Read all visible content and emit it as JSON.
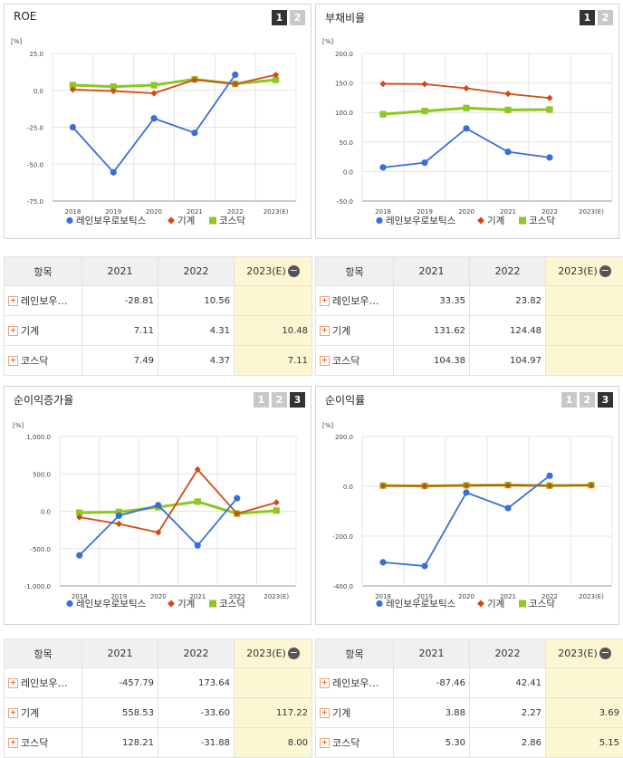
{
  "legend": [
    "레인보우로보틱스",
    "기계",
    "코스닥"
  ],
  "colors": {
    "series": [
      "#3a6fd8",
      "#d24a14",
      "#8dc71f"
    ]
  },
  "table_header": {
    "item": "항목",
    "years": [
      "2021",
      "2022",
      "2023(E)"
    ],
    "collapse_icon": "minus-circle-icon"
  },
  "row_names": [
    "레인보우…",
    "기계",
    "코스닥"
  ],
  "panels": [
    {
      "title": "ROE",
      "tabs": [
        "1",
        "2"
      ],
      "active_tab": 0,
      "unit": "[%]",
      "chart_data": {
        "type": "line",
        "x": [
          "2018",
          "2019",
          "2020",
          "2021",
          "2022",
          "2023(E)"
        ],
        "y_ticks": [
          "25.0",
          "0.0",
          "-25.0",
          "-50.0",
          "-75.0"
        ],
        "ylim": [
          -75,
          25
        ],
        "series": [
          {
            "name": "레인보우로보틱스",
            "values": [
              -25.0,
              -55.5,
              -19.0,
              -28.81,
              10.56,
              null
            ]
          },
          {
            "name": "기계",
            "values": [
              0.5,
              -0.5,
              -2.0,
              7.11,
              4.31,
              10.48
            ]
          },
          {
            "name": "코스닥",
            "values": [
              3.5,
              2.5,
              3.5,
              7.49,
              4.37,
              7.11
            ]
          }
        ]
      },
      "table": [
        [
          "-28.81",
          "10.56",
          ""
        ],
        [
          "7.11",
          "4.31",
          "10.48"
        ],
        [
          "7.49",
          "4.37",
          "7.11"
        ]
      ]
    },
    {
      "title": "부채비율",
      "tabs": [
        "1",
        "2"
      ],
      "active_tab": 0,
      "unit": "[%]",
      "chart_data": {
        "type": "line",
        "x": [
          "2018",
          "2019",
          "2020",
          "2021",
          "2022",
          "2023(E)"
        ],
        "y_ticks": [
          "200.0",
          "150.0",
          "100.0",
          "50.0",
          "0.0",
          "-50.0"
        ],
        "ylim": [
          -50,
          200
        ],
        "series": [
          {
            "name": "레인보우로보틱스",
            "values": [
              7.0,
              15.0,
              73.0,
              33.35,
              23.82,
              null
            ]
          },
          {
            "name": "기계",
            "values": [
              148.5,
              148.0,
              141.0,
              131.62,
              124.48,
              null
            ]
          },
          {
            "name": "코스닥",
            "values": [
              97.0,
              102.5,
              107.5,
              104.38,
              104.97,
              null
            ]
          }
        ]
      },
      "table": [
        [
          "33.35",
          "23.82",
          ""
        ],
        [
          "131.62",
          "124.48",
          ""
        ],
        [
          "104.38",
          "104.97",
          ""
        ]
      ]
    },
    {
      "title": "순이익증가율",
      "tabs": [
        "1",
        "2",
        "3"
      ],
      "active_tab": 2,
      "unit": "[%]",
      "chart_data": {
        "type": "line",
        "x": [
          "2018",
          "2019",
          "2020",
          "2021",
          "2022",
          "2023(E)"
        ],
        "y_ticks": [
          "1,000.0",
          "500.0",
          "0.0",
          "-500.0",
          "-1,000.0"
        ],
        "ylim": [
          -1000,
          1000
        ],
        "series": [
          {
            "name": "레인보우로보틱스",
            "values": [
              -590.0,
              -60.0,
              80.0,
              -457.79,
              173.64,
              null
            ]
          },
          {
            "name": "기계",
            "values": [
              -80.0,
              -170.0,
              -285.0,
              558.53,
              -33.6,
              117.22
            ]
          },
          {
            "name": "코스닥",
            "values": [
              -20.0,
              -10.0,
              55.0,
              128.21,
              -31.88,
              8.0
            ]
          }
        ]
      },
      "table": [
        [
          "-457.79",
          "173.64",
          ""
        ],
        [
          "558.53",
          "-33.60",
          "117.22"
        ],
        [
          "128.21",
          "-31.88",
          "8.00"
        ]
      ]
    },
    {
      "title": "순이익률",
      "tabs": [
        "1",
        "2",
        "3"
      ],
      "active_tab": 2,
      "unit": "[%]",
      "chart_data": {
        "type": "line",
        "x": [
          "2018",
          "2019",
          "2020",
          "2021",
          "2022",
          "2023(E)"
        ],
        "y_ticks": [
          "200.0",
          "0.0",
          "-200.0",
          "-400.0"
        ],
        "ylim": [
          -400,
          200
        ],
        "series": [
          {
            "name": "레인보우로보틱스",
            "values": [
              -305.0,
              -320.0,
              -25.0,
              -87.46,
              42.41,
              null
            ]
          },
          {
            "name": "기계",
            "values": [
              2.0,
              1.0,
              3.0,
              3.88,
              2.27,
              3.69
            ]
          },
          {
            "name": "코스닥",
            "values": [
              3.0,
              1.5,
              4.0,
              5.3,
              2.86,
              5.15
            ]
          }
        ]
      },
      "table": [
        [
          "-87.46",
          "42.41",
          ""
        ],
        [
          "3.88",
          "2.27",
          "3.69"
        ],
        [
          "5.30",
          "2.86",
          "5.15"
        ]
      ]
    }
  ]
}
